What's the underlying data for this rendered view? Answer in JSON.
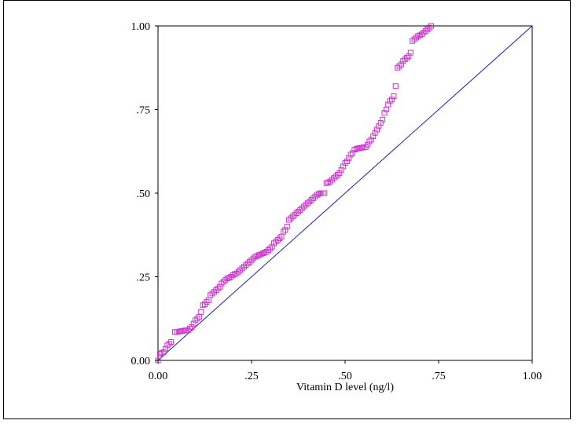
{
  "chart_data": {
    "type": "scatter",
    "xlabel": "Vitamin D level (ng/l)",
    "ylabel": "",
    "xlim": [
      0,
      1
    ],
    "ylim": [
      0,
      1
    ],
    "x_ticks": [
      "0.00",
      ".25",
      ".50",
      ".75",
      "1.00"
    ],
    "y_ticks": [
      "0.00",
      ".25",
      ".50",
      ".75",
      "1.00"
    ],
    "grid": false,
    "reference_line": {
      "from": [
        0,
        0
      ],
      "to": [
        1,
        1
      ],
      "color": "#1a1acc"
    },
    "marker_color": "#cc33cc",
    "points": [
      [
        0.0,
        0.0
      ],
      [
        0.005,
        0.02
      ],
      [
        0.01,
        0.022
      ],
      [
        0.015,
        0.025
      ],
      [
        0.02,
        0.035
      ],
      [
        0.025,
        0.045
      ],
      [
        0.03,
        0.05
      ],
      [
        0.035,
        0.055
      ],
      [
        0.045,
        0.085
      ],
      [
        0.05,
        0.085
      ],
      [
        0.055,
        0.086
      ],
      [
        0.06,
        0.087
      ],
      [
        0.065,
        0.088
      ],
      [
        0.07,
        0.089
      ],
      [
        0.075,
        0.09
      ],
      [
        0.08,
        0.09
      ],
      [
        0.085,
        0.095
      ],
      [
        0.09,
        0.1
      ],
      [
        0.095,
        0.11
      ],
      [
        0.1,
        0.12
      ],
      [
        0.105,
        0.125
      ],
      [
        0.11,
        0.13
      ],
      [
        0.115,
        0.145
      ],
      [
        0.12,
        0.165
      ],
      [
        0.125,
        0.168
      ],
      [
        0.13,
        0.175
      ],
      [
        0.135,
        0.18
      ],
      [
        0.14,
        0.195
      ],
      [
        0.145,
        0.2
      ],
      [
        0.15,
        0.205
      ],
      [
        0.155,
        0.21
      ],
      [
        0.16,
        0.215
      ],
      [
        0.165,
        0.22
      ],
      [
        0.17,
        0.23
      ],
      [
        0.175,
        0.235
      ],
      [
        0.18,
        0.24
      ],
      [
        0.185,
        0.245
      ],
      [
        0.19,
        0.247
      ],
      [
        0.195,
        0.25
      ],
      [
        0.2,
        0.255
      ],
      [
        0.205,
        0.258
      ],
      [
        0.21,
        0.26
      ],
      [
        0.215,
        0.265
      ],
      [
        0.22,
        0.27
      ],
      [
        0.225,
        0.275
      ],
      [
        0.23,
        0.28
      ],
      [
        0.235,
        0.285
      ],
      [
        0.24,
        0.29
      ],
      [
        0.245,
        0.295
      ],
      [
        0.25,
        0.3
      ],
      [
        0.255,
        0.305
      ],
      [
        0.26,
        0.31
      ],
      [
        0.265,
        0.312
      ],
      [
        0.27,
        0.315
      ],
      [
        0.275,
        0.317
      ],
      [
        0.28,
        0.32
      ],
      [
        0.285,
        0.322
      ],
      [
        0.29,
        0.325
      ],
      [
        0.295,
        0.33
      ],
      [
        0.3,
        0.335
      ],
      [
        0.305,
        0.34
      ],
      [
        0.31,
        0.35
      ],
      [
        0.315,
        0.355
      ],
      [
        0.32,
        0.36
      ],
      [
        0.325,
        0.365
      ],
      [
        0.33,
        0.37
      ],
      [
        0.335,
        0.385
      ],
      [
        0.34,
        0.39
      ],
      [
        0.345,
        0.4
      ],
      [
        0.35,
        0.42
      ],
      [
        0.355,
        0.425
      ],
      [
        0.36,
        0.43
      ],
      [
        0.365,
        0.435
      ],
      [
        0.37,
        0.44
      ],
      [
        0.375,
        0.445
      ],
      [
        0.38,
        0.45
      ],
      [
        0.385,
        0.455
      ],
      [
        0.39,
        0.46
      ],
      [
        0.395,
        0.465
      ],
      [
        0.4,
        0.47
      ],
      [
        0.405,
        0.475
      ],
      [
        0.41,
        0.48
      ],
      [
        0.415,
        0.485
      ],
      [
        0.42,
        0.49
      ],
      [
        0.425,
        0.495
      ],
      [
        0.43,
        0.498
      ],
      [
        0.435,
        0.5
      ],
      [
        0.44,
        0.5
      ],
      [
        0.445,
        0.5
      ],
      [
        0.45,
        0.53
      ],
      [
        0.455,
        0.532
      ],
      [
        0.46,
        0.535
      ],
      [
        0.465,
        0.54
      ],
      [
        0.47,
        0.545
      ],
      [
        0.475,
        0.55
      ],
      [
        0.48,
        0.555
      ],
      [
        0.485,
        0.56
      ],
      [
        0.49,
        0.57
      ],
      [
        0.495,
        0.58
      ],
      [
        0.5,
        0.59
      ],
      [
        0.505,
        0.595
      ],
      [
        0.51,
        0.605
      ],
      [
        0.515,
        0.615
      ],
      [
        0.52,
        0.62
      ],
      [
        0.525,
        0.63
      ],
      [
        0.53,
        0.632
      ],
      [
        0.535,
        0.634
      ],
      [
        0.54,
        0.635
      ],
      [
        0.545,
        0.636
      ],
      [
        0.55,
        0.637
      ],
      [
        0.555,
        0.638
      ],
      [
        0.56,
        0.645
      ],
      [
        0.565,
        0.655
      ],
      [
        0.57,
        0.66
      ],
      [
        0.575,
        0.67
      ],
      [
        0.58,
        0.68
      ],
      [
        0.585,
        0.69
      ],
      [
        0.59,
        0.7
      ],
      [
        0.595,
        0.71
      ],
      [
        0.6,
        0.72
      ],
      [
        0.605,
        0.74
      ],
      [
        0.61,
        0.75
      ],
      [
        0.615,
        0.765
      ],
      [
        0.62,
        0.775
      ],
      [
        0.625,
        0.78
      ],
      [
        0.63,
        0.79
      ],
      [
        0.635,
        0.82
      ],
      [
        0.64,
        0.875
      ],
      [
        0.645,
        0.88
      ],
      [
        0.65,
        0.885
      ],
      [
        0.655,
        0.895
      ],
      [
        0.66,
        0.9
      ],
      [
        0.665,
        0.905
      ],
      [
        0.67,
        0.91
      ],
      [
        0.675,
        0.92
      ],
      [
        0.68,
        0.955
      ],
      [
        0.685,
        0.96
      ],
      [
        0.69,
        0.965
      ],
      [
        0.695,
        0.97
      ],
      [
        0.7,
        0.972
      ],
      [
        0.705,
        0.975
      ],
      [
        0.71,
        0.98
      ],
      [
        0.715,
        0.985
      ],
      [
        0.72,
        0.99
      ],
      [
        0.725,
        0.995
      ],
      [
        0.73,
        1.0
      ]
    ]
  }
}
